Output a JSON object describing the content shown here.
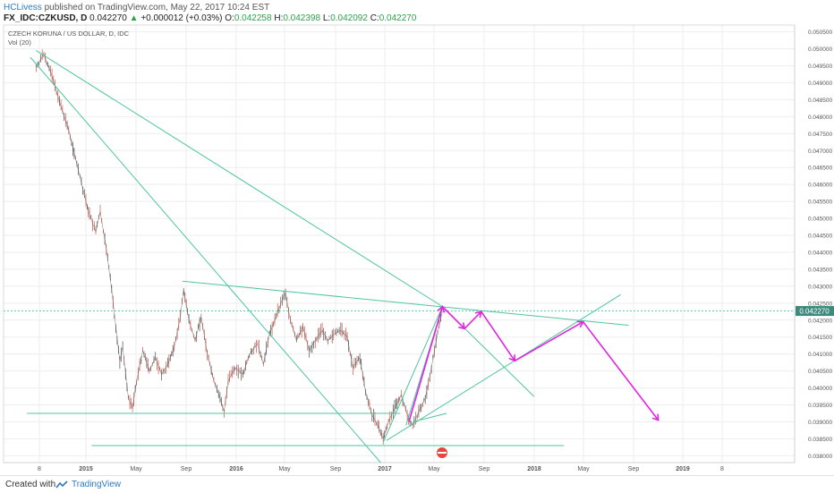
{
  "header": {
    "author": "HCLivess",
    "published_text": "published on TradingView.com, May 22, 2017 10:24 EST",
    "symbol": "FX_IDC:CZKUSD, D",
    "last": "0.042270",
    "change_arrow": "▲",
    "change": "+0.000012 (+0.03%)",
    "o_label": "O:",
    "o_value": "0.042258",
    "h_label": "H:",
    "h_value": "0.042398",
    "l_label": "L:",
    "l_value": "0.042092",
    "c_label": "C:",
    "c_value": "0.042270"
  },
  "legend": {
    "title": "CZECH KORUNA / US DOLLAR, D, IDC",
    "volume": "Vol (20)"
  },
  "footer": {
    "created_with": "Created with",
    "brand": "TradingView"
  },
  "colors": {
    "trendline": "#4fc5a0",
    "projection": "#e026e0",
    "candle": "#3b3b3b",
    "price_tag": "#3d8a7c",
    "grid": "#eeeeee",
    "axis_text": "#555555"
  },
  "chart_data": {
    "type": "line",
    "title": "CZECH KORUNA / US DOLLAR, D, IDC",
    "x_ticks": [
      "8",
      "2015",
      "May",
      "Sep",
      "2016",
      "May",
      "Sep",
      "2017",
      "May",
      "Sep",
      "2018",
      "May",
      "Sep",
      "2019",
      "8"
    ],
    "y_ticks": [
      "0.050500",
      "0.050000",
      "0.049500",
      "0.049000",
      "0.048500",
      "0.048000",
      "0.047500",
      "0.047000",
      "0.046500",
      "0.046000",
      "0.045500",
      "0.045000",
      "0.044500",
      "0.044000",
      "0.043500",
      "0.043000",
      "0.042500",
      "0.042000",
      "0.041500",
      "0.041000",
      "0.040500",
      "0.040000",
      "0.039500",
      "0.039000",
      "0.038500",
      "0.038000"
    ],
    "ylim": [
      0.0378,
      0.0507
    ],
    "last_price": 0.04227,
    "last_price_label": "0.042270",
    "series": [
      {
        "kind": "price",
        "points": [
          [
            "2014-09-01",
            0.04945
          ],
          [
            "2014-09-20",
            0.04985
          ],
          [
            "2014-10-10",
            0.0492
          ],
          [
            "2014-11-01",
            0.0483
          ],
          [
            "2014-11-20",
            0.0476
          ],
          [
            "2014-12-10",
            0.0466
          ],
          [
            "2015-01-01",
            0.0455
          ],
          [
            "2015-01-10",
            0.0451
          ],
          [
            "2015-01-25",
            0.0446
          ],
          [
            "2015-02-05",
            0.0452
          ],
          [
            "2015-02-20",
            0.0441
          ],
          [
            "2015-03-05",
            0.0429
          ],
          [
            "2015-03-15",
            0.0418
          ],
          [
            "2015-03-25",
            0.0408
          ],
          [
            "2015-04-01",
            0.0412
          ],
          [
            "2015-04-15",
            0.0397
          ],
          [
            "2015-04-25",
            0.0394
          ],
          [
            "2015-05-05",
            0.0402
          ],
          [
            "2015-05-20",
            0.0411
          ],
          [
            "2015-06-05",
            0.0405
          ],
          [
            "2015-06-20",
            0.0409
          ],
          [
            "2015-07-05",
            0.0404
          ],
          [
            "2015-07-20",
            0.0407
          ],
          [
            "2015-08-05",
            0.0412
          ],
          [
            "2015-08-20",
            0.0421
          ],
          [
            "2015-08-28",
            0.0429
          ],
          [
            "2015-09-10",
            0.042
          ],
          [
            "2015-09-25",
            0.0414
          ],
          [
            "2015-10-10",
            0.0421
          ],
          [
            "2015-10-25",
            0.041
          ],
          [
            "2015-11-10",
            0.0402
          ],
          [
            "2015-11-25",
            0.0397
          ],
          [
            "2015-12-05",
            0.0393
          ],
          [
            "2015-12-15",
            0.0402
          ],
          [
            "2016-01-01",
            0.0406
          ],
          [
            "2016-01-20",
            0.0404
          ],
          [
            "2016-02-05",
            0.041
          ],
          [
            "2016-02-25",
            0.0413
          ],
          [
            "2016-03-10",
            0.0407
          ],
          [
            "2016-03-25",
            0.0416
          ],
          [
            "2016-04-10",
            0.0421
          ],
          [
            "2016-04-25",
            0.0426
          ],
          [
            "2016-05-03",
            0.0428
          ],
          [
            "2016-05-15",
            0.042
          ],
          [
            "2016-05-30",
            0.0414
          ],
          [
            "2016-06-15",
            0.0418
          ],
          [
            "2016-06-30",
            0.0411
          ],
          [
            "2016-07-15",
            0.0414
          ],
          [
            "2016-08-01",
            0.0417
          ],
          [
            "2016-08-15",
            0.0414
          ],
          [
            "2016-09-01",
            0.0416
          ],
          [
            "2016-09-15",
            0.0417
          ],
          [
            "2016-10-01",
            0.0415
          ],
          [
            "2016-10-15",
            0.0406
          ],
          [
            "2016-11-01",
            0.0409
          ],
          [
            "2016-11-15",
            0.0399
          ],
          [
            "2016-12-01",
            0.0392
          ],
          [
            "2016-12-15",
            0.0389
          ],
          [
            "2016-12-28",
            0.0385
          ],
          [
            "2017-01-10",
            0.039
          ],
          [
            "2017-01-25",
            0.0394
          ],
          [
            "2017-02-10",
            0.0398
          ],
          [
            "2017-02-25",
            0.0392
          ],
          [
            "2017-03-10",
            0.0389
          ],
          [
            "2017-03-25",
            0.0393
          ],
          [
            "2017-04-10",
            0.0397
          ],
          [
            "2017-04-25",
            0.0406
          ],
          [
            "2017-05-10",
            0.0416
          ],
          [
            "2017-05-22",
            0.04227
          ]
        ]
      },
      {
        "kind": "trendline",
        "lines": [
          [
            [
              "2014-08-18",
              0.04975
            ],
            [
              "2016-12-22",
              0.0378
            ]
          ],
          [
            [
              "2014-09-01",
              0.04995
            ],
            [
              "2017-05-22",
              0.0424
            ]
          ],
          [
            [
              "2015-08-25",
              0.04315
            ],
            [
              "2018-08-20",
              0.04185
            ]
          ],
          [
            [
              "2015-01-15",
              0.0383
            ],
            [
              "2018-03-15",
              0.0383
            ]
          ],
          [
            [
              "2014-08-10",
              0.03925
            ],
            [
              "2017-02-08",
              0.03925
            ]
          ],
          [
            [
              "2016-12-28",
              0.0384
            ],
            [
              "2017-05-22",
              0.0424
            ]
          ],
          [
            [
              "2017-02-22",
              0.0389
            ],
            [
              "2017-05-22",
              0.0424
            ]
          ],
          [
            [
              "2017-01-05",
              0.03845
            ],
            [
              "2018-08-01",
              0.04275
            ]
          ],
          [
            [
              "2017-03-10",
              0.039
            ],
            [
              "2017-06-01",
              0.03925
            ]
          ],
          [
            [
              "2017-05-22",
              0.0424
            ],
            [
              "2018-01-01",
              0.03975
            ]
          ]
        ]
      },
      {
        "kind": "projection",
        "points": [
          [
            "2017-03-01",
            0.039
          ],
          [
            "2017-05-22",
            0.0424
          ],
          [
            "2017-07-15",
            0.04175
          ],
          [
            "2017-08-25",
            0.04225
          ],
          [
            "2017-11-15",
            0.0408
          ],
          [
            "2018-05-01",
            0.04195
          ],
          [
            "2018-11-01",
            0.03905
          ]
        ]
      }
    ]
  }
}
